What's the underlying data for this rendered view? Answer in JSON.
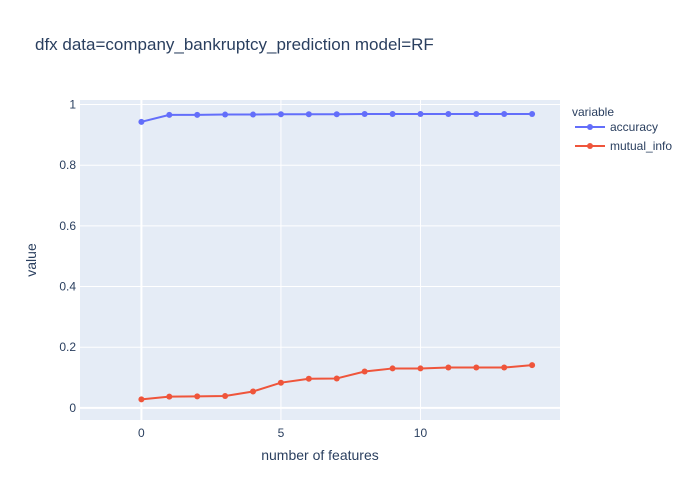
{
  "chart_data": {
    "type": "line",
    "title": "dfx data=company_bankruptcy_prediction model=RF",
    "xlabel": "number of features",
    "ylabel": "value",
    "xlim": [
      -2.2,
      15.0
    ],
    "ylim": [
      -0.04,
      1.015
    ],
    "xticks": [
      0,
      5,
      10
    ],
    "xtick_labels": [
      "0",
      "5",
      "10"
    ],
    "yticks": [
      0,
      0.2,
      0.4,
      0.6,
      0.8,
      1
    ],
    "ytick_labels": [
      "0",
      "0.2",
      "0.4",
      "0.6",
      "0.8",
      "1"
    ],
    "grid": true,
    "legend_title": "variable",
    "legend_position": "right",
    "x": [
      0,
      1,
      2,
      3,
      4,
      5,
      6,
      7,
      8,
      9,
      10,
      11,
      12,
      13,
      14
    ],
    "series": [
      {
        "name": "accuracy",
        "color": "#636efa",
        "values": [
          0.943,
          0.966,
          0.966,
          0.967,
          0.967,
          0.968,
          0.968,
          0.968,
          0.969,
          0.969,
          0.969,
          0.969,
          0.969,
          0.969,
          0.969
        ]
      },
      {
        "name": "mutual_info",
        "color": "#ef553b",
        "values": [
          0.028,
          0.037,
          0.038,
          0.039,
          0.054,
          0.083,
          0.096,
          0.097,
          0.12,
          0.13,
          0.13,
          0.133,
          0.133,
          0.133,
          0.141
        ]
      }
    ],
    "colors": {
      "plot_background": "#e5ecf6",
      "grid": "#ffffff",
      "text": "#2a3f5f"
    }
  }
}
